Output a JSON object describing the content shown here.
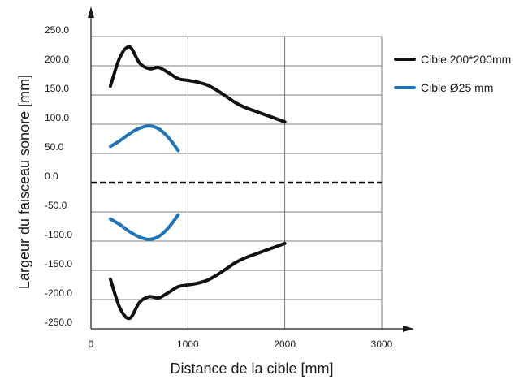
{
  "chart_data": {
    "type": "line",
    "xlabel": "Distance de la cible [mm]",
    "ylabel": "Largeur du faisceau sonore  [mm]",
    "xlim": [
      0,
      3000
    ],
    "ylim": [
      -250,
      250
    ],
    "x_ticks": [
      "0",
      "1000",
      "2000",
      "3000"
    ],
    "y_ticks": [
      "250.0",
      "200.0",
      "150.0",
      "100.0",
      "50.0",
      "0.0",
      "-50.0",
      "-100.0",
      "-150.0",
      "-200.0",
      "-250.0"
    ],
    "grid": true,
    "legend_position": "right",
    "colors": {
      "axis": "#1a1a1a",
      "grid": "#555555",
      "series_large": "#111111",
      "series_small": "#1f74b8",
      "zero_line": "#111111"
    },
    "series": [
      {
        "name": "Cible 200*200mm",
        "color": "#111111",
        "mirrored": true,
        "x": [
          200,
          300,
          400,
          500,
          600,
          700,
          800,
          900,
          1000,
          1100,
          1200,
          1300,
          1400,
          1500,
          1600,
          1700,
          1800,
          1900,
          2000
        ],
        "values": [
          165,
          215,
          232,
          205,
          195,
          197,
          188,
          178,
          175,
          172,
          167,
          158,
          147,
          136,
          128,
          122,
          116,
          110,
          104
        ]
      },
      {
        "name": "Cible Ø25 mm",
        "color": "#1f74b8",
        "mirrored": true,
        "x": [
          200,
          300,
          400,
          500,
          600,
          700,
          800,
          900
        ],
        "values": [
          62,
          72,
          84,
          93,
          97,
          92,
          77,
          55
        ]
      }
    ]
  }
}
